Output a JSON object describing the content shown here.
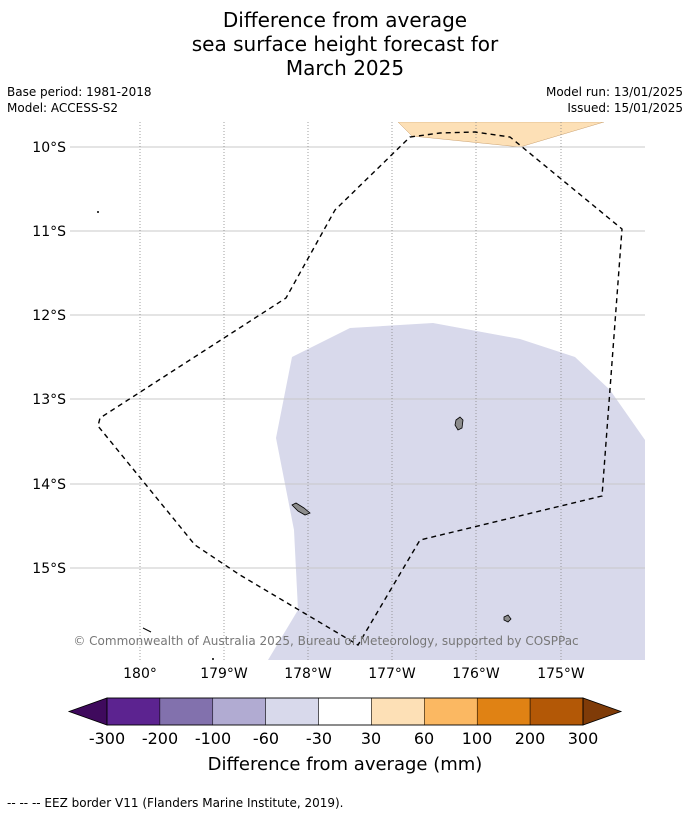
{
  "title": {
    "line1": "Difference from average",
    "line2": "sea surface height forecast for",
    "line3": "March 2025"
  },
  "meta": {
    "base_period": "Base period: 1981-2018",
    "model": "Model: ACCESS-S2",
    "model_run": "Model run: 13/01/2025",
    "issued": "Issued: 15/01/2025"
  },
  "map": {
    "lat_labels": [
      "10°S",
      "11°S",
      "12°S",
      "13°S",
      "14°S",
      "15°S"
    ],
    "lon_labels": [
      "180°",
      "179°W",
      "178°W",
      "177°W",
      "176°W",
      "175°W"
    ],
    "copyright": "© Commonwealth of Australia 2025, Bureau of Meteorology, supported by COSPPac",
    "colors": {
      "anomaly_positive_30_60": "#fde0b6",
      "anomaly_negative_60_30": "#d8d9eb",
      "land": "#8c8c8c",
      "gridline": "#c8c8c8"
    }
  },
  "colorbar": {
    "ticks": [
      "-300",
      "-200",
      "-100",
      "-60",
      "-30",
      "30",
      "60",
      "100",
      "200",
      "300"
    ],
    "colors": [
      "#3f0a5d",
      "#5c2390",
      "#8271ad",
      "#b1abd2",
      "#d8d9eb",
      "#ffffff",
      "#fde0b6",
      "#fbb862",
      "#e08214",
      "#b35806",
      "#7f3b08"
    ],
    "label": "Difference from average (mm)"
  },
  "footer": "-- -- -- EEZ border V11 (Flanders Marine Institute, 2019)."
}
